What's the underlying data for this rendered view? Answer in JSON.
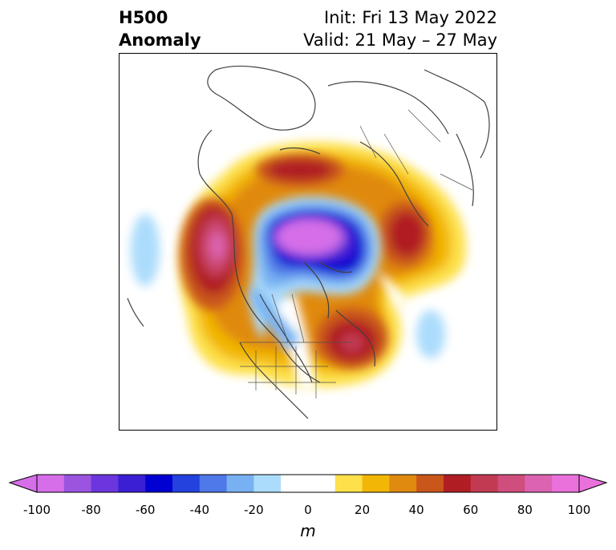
{
  "header": {
    "title_line1": "H500",
    "title_line2": "Anomaly",
    "init": "Init: Fri 13 May 2022",
    "valid": "Valid: 21 May – 27 May"
  },
  "colorbar": {
    "unit": "m",
    "ticks": [
      "-100",
      "-80",
      "-60",
      "-40",
      "-20",
      "0",
      "20",
      "40",
      "60",
      "80",
      "100"
    ],
    "colors": [
      "#d56ee8",
      "#9b54df",
      "#6b36de",
      "#3a1fd4",
      "#0000d2",
      "#2442dd",
      "#4f78e8",
      "#77b1f2",
      "#acdcfc",
      "#ffffff",
      "#ffffff",
      "#fde04a",
      "#f2b606",
      "#e08a10",
      "#c9561a",
      "#b01e24",
      "#c23a52",
      "#cf4e7d",
      "#dc63b1",
      "#ea70dc"
    ],
    "under_color": "#d56ee8",
    "over_color": "#ea70dc"
  },
  "map": {
    "projection": "north-polar-stereographic",
    "region": "Northern Hemisphere"
  }
}
